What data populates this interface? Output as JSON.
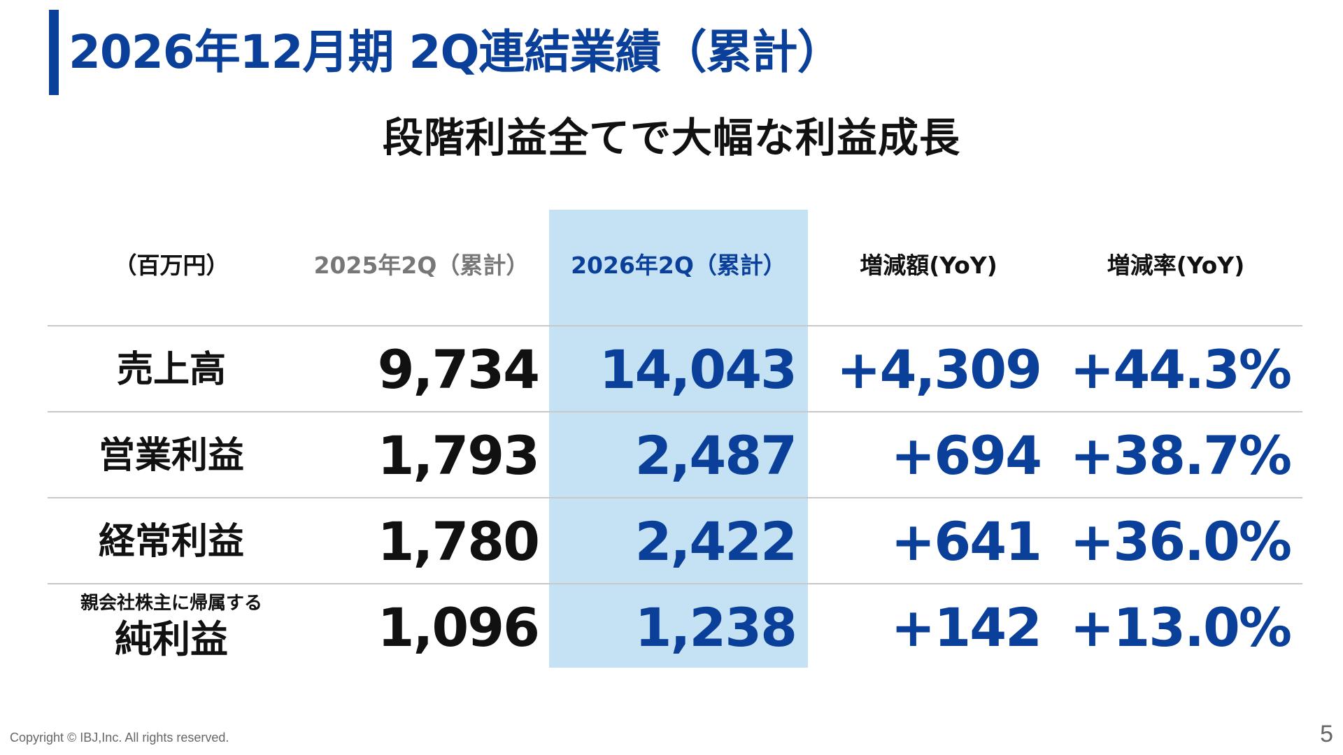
{
  "title": "2026年12月期 2Q連結業績（累計）",
  "subtitle": "段階利益全てで大幅な利益成長",
  "table": {
    "headers": {
      "unit": "（百万円）",
      "prev": "2025年2Q（累計）",
      "curr": "2026年2Q（累計）",
      "diff": "増減額(YoY)",
      "rate": "増減率(YoY)"
    },
    "rows": [
      {
        "label": "売上高",
        "prev": "9,734",
        "curr": "14,043",
        "diff": "+4,309",
        "rate": "+44.3%"
      },
      {
        "label": "営業利益",
        "prev": "1,793",
        "curr": "2,487",
        "diff": "+694",
        "rate": "+38.7%"
      },
      {
        "label": "経常利益",
        "prev": "1,780",
        "curr": "2,422",
        "diff": "+641",
        "rate": "+36.0%"
      },
      {
        "label_small": "親会社株主に帰属する",
        "label": "純利益",
        "prev": "1,096",
        "curr": "1,238",
        "diff": "+142",
        "rate": "+13.0%"
      }
    ]
  },
  "footer": {
    "copyright": "Copyright © IBJ,Inc. All rights reserved.",
    "page_number": "5"
  },
  "colors": {
    "accent": "#0a3f9a",
    "highlight": "#c4e2f4",
    "previous_text": "#777777"
  }
}
